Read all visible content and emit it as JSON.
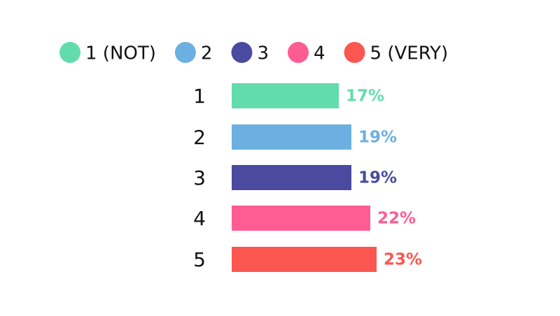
{
  "chart_data": {
    "type": "bar",
    "orientation": "horizontal",
    "series": [
      {
        "name": "1 (NOT)",
        "color": "#62dcab"
      },
      {
        "name": "2",
        "color": "#6bb0e0"
      },
      {
        "name": "3",
        "color": "#4a4aa0"
      },
      {
        "name": "4",
        "color": "#ff5c93"
      },
      {
        "name": "5 (VERY)",
        "color": "#fc5650"
      }
    ],
    "categories": [
      "1",
      "2",
      "3",
      "4",
      "5"
    ],
    "values": [
      17,
      19,
      19,
      22,
      23
    ],
    "value_labels": [
      "17%",
      "19%",
      "19%",
      "22%",
      "23%"
    ]
  }
}
